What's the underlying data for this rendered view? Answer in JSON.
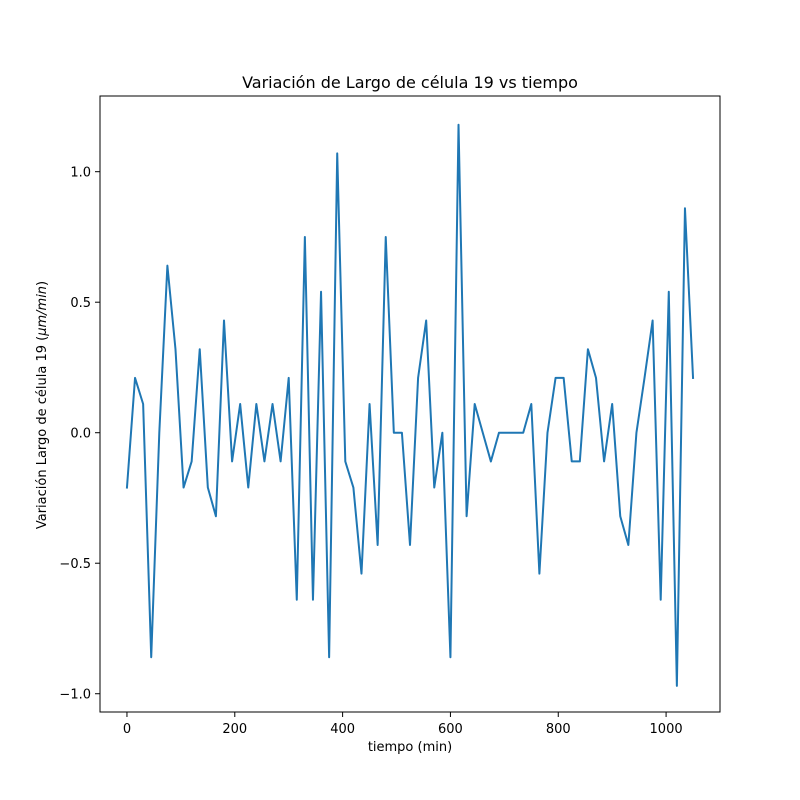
{
  "chart_data": {
    "type": "line",
    "title": "Variación de Largo de célula 19 vs tiempo",
    "xlabel": "tiempo (min)",
    "ylabel_prefix": "Variación Largo de célula 19 (",
    "ylabel_unit": "μm/min",
    "ylabel_suffix": ")",
    "xlim": [
      -50,
      1100
    ],
    "ylim": [
      -1.07,
      1.29
    ],
    "xticks": [
      0,
      200,
      400,
      600,
      800,
      1000
    ],
    "yticks": [
      -1.0,
      -0.5,
      0.0,
      0.5,
      1.0
    ],
    "xtick_labels": [
      "0",
      "200",
      "400",
      "600",
      "800",
      "1000"
    ],
    "ytick_labels": [
      "−1.0",
      "−0.5",
      "0.0",
      "0.5",
      "1.0"
    ],
    "grid": false,
    "series": [
      {
        "color": "#1f77b4",
        "x": [
          0,
          15,
          30,
          45,
          60,
          75,
          90,
          105,
          120,
          135,
          150,
          165,
          180,
          195,
          210,
          225,
          240,
          255,
          270,
          285,
          300,
          315,
          330,
          345,
          360,
          375,
          390,
          405,
          420,
          435,
          450,
          465,
          480,
          495,
          510,
          525,
          540,
          555,
          570,
          585,
          600,
          615,
          630,
          645,
          660,
          675,
          690,
          705,
          720,
          735,
          750,
          765,
          780,
          795,
          810,
          825,
          840,
          855,
          870,
          885,
          900,
          915,
          930,
          945,
          960,
          975,
          990,
          1005,
          1020,
          1035,
          1050
        ],
        "y": [
          -0.21,
          0.21,
          0.11,
          -0.86,
          0.0,
          0.64,
          0.32,
          -0.21,
          -0.11,
          0.32,
          -0.21,
          -0.32,
          0.43,
          -0.11,
          0.11,
          -0.21,
          0.11,
          -0.11,
          0.11,
          -0.11,
          0.21,
          -0.64,
          0.75,
          -0.64,
          0.54,
          -0.86,
          1.07,
          -0.11,
          -0.21,
          -0.54,
          0.11,
          -0.43,
          0.75,
          0.0,
          0.0,
          -0.43,
          0.21,
          0.43,
          -0.21,
          0.0,
          -0.86,
          1.18,
          -0.32,
          0.11,
          0.0,
          -0.11,
          0.0,
          0.0,
          0.0,
          0.0,
          0.11,
          -0.54,
          0.0,
          0.21,
          0.21,
          -0.11,
          -0.11,
          0.32,
          0.21,
          -0.11,
          0.11,
          -0.32,
          -0.43,
          0.0,
          0.21,
          0.43,
          -0.64,
          0.54,
          -0.97,
          0.86,
          0.21
        ]
      }
    ]
  }
}
